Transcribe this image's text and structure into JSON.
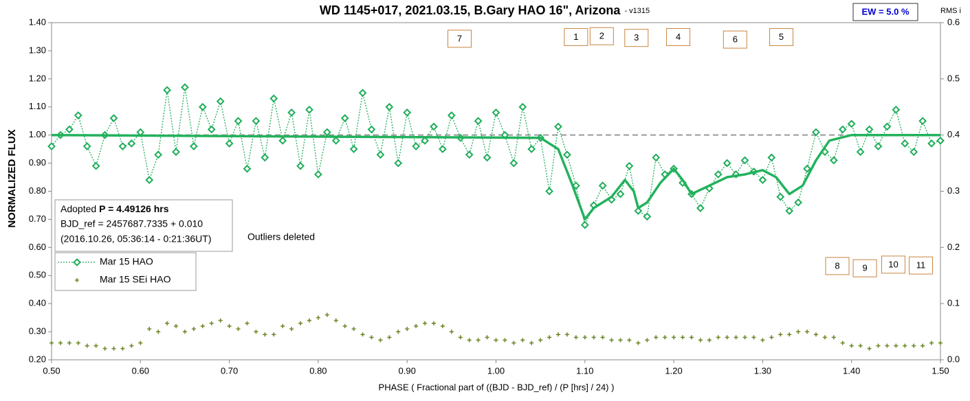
{
  "chart_data": {
    "type": "scatter",
    "title": "WD 1145+017, 2021.03.15, B.Gary HAO 16\", Arizona",
    "version": "- v1315",
    "ew_label": "EW = 5.0 %",
    "y2_title": "RMS i",
    "ylabel": "NORMALIZED FLUX",
    "xlabel": "PHASE ( Fractional part of ((BJD - BJD_ref) / (P [hrs] / 24) )",
    "info": {
      "prefix": "Adopted",
      "period": "P = 4.49126 hrs",
      "line2": "BJD_ref = 2457687.7335 + 0.010",
      "line3": "(2016.10.26, 05:36:14 - 0:21:36UT)"
    },
    "note": "Outliers deleted",
    "xlim": [
      0.5,
      1.5
    ],
    "ylim": [
      0.2,
      1.4
    ],
    "y2lim": [
      0,
      0.6
    ],
    "xticks": [
      {
        "value": 0.5,
        "label": "0.50"
      },
      {
        "value": 0.6,
        "label": "0.60"
      },
      {
        "value": 0.7,
        "label": "0.70"
      },
      {
        "value": 0.8,
        "label": "0.80"
      },
      {
        "value": 0.9,
        "label": "0.90"
      },
      {
        "value": 1.0,
        "label": "1.00"
      },
      {
        "value": 1.1,
        "label": "1.10"
      },
      {
        "value": 1.2,
        "label": "1.20"
      },
      {
        "value": 1.3,
        "label": "1.30"
      },
      {
        "value": 1.4,
        "label": "1.40"
      },
      {
        "value": 1.5,
        "label": "1.50"
      }
    ],
    "yticks": [
      {
        "value": 0.2,
        "label": "0.20"
      },
      {
        "value": 0.3,
        "label": "0.30"
      },
      {
        "value": 0.4,
        "label": "0.40"
      },
      {
        "value": 0.5,
        "label": "0.50"
      },
      {
        "value": 0.6,
        "label": "0.60"
      },
      {
        "value": 0.7,
        "label": "0.70"
      },
      {
        "value": 0.8,
        "label": "0.80"
      },
      {
        "value": 0.9,
        "label": "0.90"
      },
      {
        "value": 1.0,
        "label": "1.00"
      },
      {
        "value": 1.1,
        "label": "1.10"
      },
      {
        "value": 1.2,
        "label": "1.20"
      },
      {
        "value": 1.3,
        "label": "1.30"
      },
      {
        "value": 1.4,
        "label": "1.40"
      }
    ],
    "y2ticks": [
      {
        "value": 0,
        "label": "0.0"
      },
      0.1,
      0.2,
      0.3,
      0.4,
      0.5,
      0.6
    ],
    "reference_line": {
      "y": 1.0,
      "color": "#999999"
    },
    "x": [
      0.5,
      0.51,
      0.52,
      0.53,
      0.54,
      0.55,
      0.56,
      0.57,
      0.58,
      0.59,
      0.6,
      0.61,
      0.62,
      0.63,
      0.64,
      0.65,
      0.66,
      0.67,
      0.68,
      0.69,
      0.7,
      0.71,
      0.72,
      0.73,
      0.74,
      0.75,
      0.76,
      0.77,
      0.78,
      0.79,
      0.8,
      0.81,
      0.82,
      0.83,
      0.84,
      0.85,
      0.86,
      0.87,
      0.88,
      0.89,
      0.9,
      0.91,
      0.92,
      0.93,
      0.94,
      0.95,
      0.96,
      0.97,
      0.98,
      0.99,
      1.0,
      1.01,
      1.02,
      1.03,
      1.04,
      1.05,
      1.06,
      1.07,
      1.08,
      1.09,
      1.1,
      1.11,
      1.12,
      1.13,
      1.14,
      1.15,
      1.16,
      1.17,
      1.18,
      1.19,
      1.2,
      1.21,
      1.22,
      1.23,
      1.24,
      1.25,
      1.26,
      1.27,
      1.28,
      1.29,
      1.3,
      1.31,
      1.32,
      1.33,
      1.34,
      1.35,
      1.36,
      1.37,
      1.38,
      1.39,
      1.4,
      1.41,
      1.42,
      1.43,
      1.44,
      1.45,
      1.46,
      1.47,
      1.48,
      1.49,
      1.5
    ],
    "series": [
      {
        "name": "Mar 15 HAO",
        "color": "#1fad5a",
        "marker": "diamond",
        "values": [
          0.96,
          1.0,
          1.02,
          1.07,
          0.96,
          0.89,
          1.0,
          1.06,
          0.96,
          0.97,
          1.01,
          0.84,
          0.93,
          1.16,
          0.94,
          1.17,
          0.96,
          1.1,
          1.02,
          1.12,
          0.97,
          1.05,
          0.88,
          1.05,
          0.92,
          1.13,
          0.98,
          1.08,
          0.89,
          1.09,
          0.86,
          1.01,
          0.98,
          1.06,
          0.95,
          1.15,
          1.02,
          0.93,
          1.1,
          0.9,
          1.08,
          0.96,
          0.98,
          1.03,
          0.95,
          1.07,
          0.99,
          0.93,
          1.05,
          0.92,
          1.08,
          1.0,
          0.9,
          1.1,
          0.95,
          0.99,
          0.8,
          1.03,
          0.93,
          0.82,
          0.68,
          0.75,
          0.82,
          0.77,
          0.79,
          0.89,
          0.73,
          0.71,
          0.92,
          0.86,
          0.88,
          0.83,
          0.79,
          0.74,
          0.81,
          0.86,
          0.9,
          0.86,
          0.91,
          0.87,
          0.84,
          0.92,
          0.78,
          0.73,
          0.76,
          0.88,
          1.01,
          0.94,
          0.91,
          1.02,
          1.04,
          0.94,
          1.02,
          0.96,
          1.03,
          1.09,
          0.97,
          0.94,
          1.05,
          0.97,
          0.98
        ]
      },
      {
        "name": "Mar 15 SEi HAO",
        "color": "#6f8a2b",
        "marker": "plus",
        "values": [
          0.26,
          0.26,
          0.26,
          0.26,
          0.25,
          0.25,
          0.24,
          0.24,
          0.24,
          0.25,
          0.26,
          0.31,
          0.3,
          0.33,
          0.32,
          0.3,
          0.31,
          0.32,
          0.33,
          0.34,
          0.32,
          0.31,
          0.33,
          0.3,
          0.29,
          0.29,
          0.32,
          0.31,
          0.33,
          0.34,
          0.35,
          0.36,
          0.34,
          0.32,
          0.31,
          0.29,
          0.28,
          0.27,
          0.28,
          0.3,
          0.31,
          0.32,
          0.33,
          0.33,
          0.32,
          0.3,
          0.28,
          0.27,
          0.27,
          0.28,
          0.27,
          0.27,
          0.26,
          0.27,
          0.26,
          0.27,
          0.28,
          0.29,
          0.29,
          0.28,
          0.28,
          0.28,
          0.28,
          0.27,
          0.27,
          0.27,
          0.26,
          0.27,
          0.28,
          0.28,
          0.28,
          0.28,
          0.28,
          0.27,
          0.27,
          0.28,
          0.28,
          0.28,
          0.28,
          0.28,
          0.27,
          0.28,
          0.29,
          0.29,
          0.3,
          0.3,
          0.29,
          0.28,
          0.28,
          0.26,
          0.25,
          0.25,
          0.24,
          0.25,
          0.25,
          0.25,
          0.25,
          0.25,
          0.25,
          0.26,
          0.26
        ]
      }
    ],
    "fit": {
      "color": "#22b25c",
      "x": [
        0.5,
        1.05,
        1.07,
        1.085,
        1.1,
        1.11,
        1.13,
        1.145,
        1.155,
        1.16,
        1.17,
        1.185,
        1.2,
        1.21,
        1.22,
        1.24,
        1.26,
        1.28,
        1.3,
        1.315,
        1.33,
        1.345,
        1.36,
        1.375,
        1.4,
        1.5
      ],
      "values": [
        1.0,
        0.99,
        0.95,
        0.83,
        0.7,
        0.74,
        0.78,
        0.84,
        0.8,
        0.74,
        0.76,
        0.83,
        0.88,
        0.84,
        0.79,
        0.82,
        0.85,
        0.86,
        0.875,
        0.85,
        0.79,
        0.82,
        0.91,
        0.98,
        1.0,
        1.0
      ]
    },
    "annotations": [
      {
        "label": "7",
        "x": 0.959,
        "y": 1.344
      },
      {
        "label": "1",
        "x": 1.09,
        "y": 1.35
      },
      {
        "label": "2",
        "x": 1.119,
        "y": 1.353
      },
      {
        "label": "3",
        "x": 1.158,
        "y": 1.347
      },
      {
        "label": "4",
        "x": 1.205,
        "y": 1.35
      },
      {
        "label": "6",
        "x": 1.269,
        "y": 1.341
      },
      {
        "label": "5",
        "x": 1.321,
        "y": 1.35
      },
      {
        "label": "8",
        "x": 1.384,
        "y": 0.535
      },
      {
        "label": "9",
        "x": 1.415,
        "y": 0.527
      },
      {
        "label": "10",
        "x": 1.447,
        "y": 0.54
      },
      {
        "label": "11",
        "x": 1.478,
        "y": 0.537
      }
    ]
  }
}
